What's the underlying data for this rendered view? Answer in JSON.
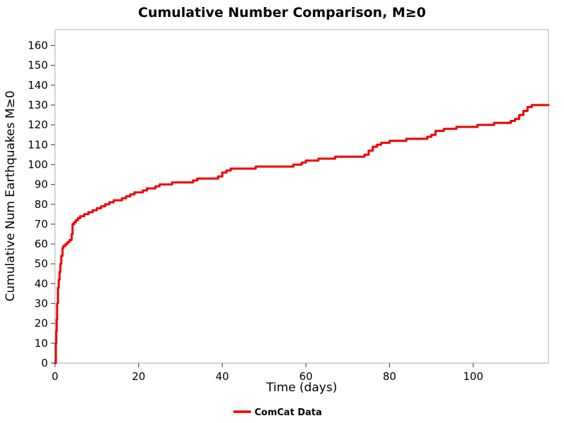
{
  "chart_data": {
    "type": "line",
    "title": "Cumulative Number Comparison, M≥0",
    "xlabel": "Time (days)",
    "ylabel": "Cumulative Num Earthquakes M≥0",
    "xlim": [
      0,
      118
    ],
    "ylim": [
      0,
      168
    ],
    "xticks": [
      0,
      20,
      40,
      60,
      80,
      100
    ],
    "yticks": [
      0,
      10,
      20,
      30,
      40,
      50,
      60,
      70,
      80,
      90,
      100,
      110,
      120,
      130,
      140,
      150,
      160
    ],
    "grid": false,
    "legend_position": "bottom-center",
    "series": [
      {
        "name": "ComCat Data",
        "color": "#ee0000",
        "step": true,
        "points": [
          [
            0,
            0
          ],
          [
            0.2,
            10
          ],
          [
            0.3,
            16
          ],
          [
            0.4,
            22
          ],
          [
            0.5,
            30
          ],
          [
            0.7,
            38
          ],
          [
            0.9,
            42
          ],
          [
            1.1,
            46
          ],
          [
            1.3,
            50
          ],
          [
            1.5,
            54
          ],
          [
            1.8,
            58
          ],
          [
            2.0,
            59
          ],
          [
            2.5,
            60
          ],
          [
            3.0,
            61
          ],
          [
            3.5,
            62
          ],
          [
            4.0,
            65
          ],
          [
            4.2,
            70
          ],
          [
            4.6,
            71
          ],
          [
            5.0,
            72
          ],
          [
            5.5,
            73
          ],
          [
            6.0,
            74
          ],
          [
            7.0,
            75
          ],
          [
            8.0,
            76
          ],
          [
            9.0,
            77
          ],
          [
            10,
            78
          ],
          [
            11,
            79
          ],
          [
            12,
            80
          ],
          [
            13,
            81
          ],
          [
            14,
            82
          ],
          [
            16,
            83
          ],
          [
            17,
            84
          ],
          [
            18,
            85
          ],
          [
            19,
            86
          ],
          [
            21,
            87
          ],
          [
            22,
            88
          ],
          [
            24,
            89
          ],
          [
            25,
            90
          ],
          [
            28,
            91
          ],
          [
            33,
            92
          ],
          [
            34,
            93
          ],
          [
            39,
            94
          ],
          [
            40,
            96
          ],
          [
            41,
            97
          ],
          [
            42,
            98
          ],
          [
            48,
            99
          ],
          [
            57,
            100
          ],
          [
            59,
            101
          ],
          [
            60,
            102
          ],
          [
            63,
            103
          ],
          [
            67,
            104
          ],
          [
            74,
            105
          ],
          [
            75,
            107
          ],
          [
            76,
            109
          ],
          [
            77,
            110
          ],
          [
            78,
            111
          ],
          [
            80,
            112
          ],
          [
            84,
            113
          ],
          [
            89,
            114
          ],
          [
            90,
            115
          ],
          [
            91,
            117
          ],
          [
            93,
            118
          ],
          [
            96,
            119
          ],
          [
            101,
            120
          ],
          [
            105,
            121
          ],
          [
            109,
            122
          ],
          [
            110,
            123
          ],
          [
            111,
            125
          ],
          [
            112,
            127
          ],
          [
            113,
            129
          ],
          [
            114,
            130
          ],
          [
            118,
            130
          ]
        ]
      }
    ]
  }
}
